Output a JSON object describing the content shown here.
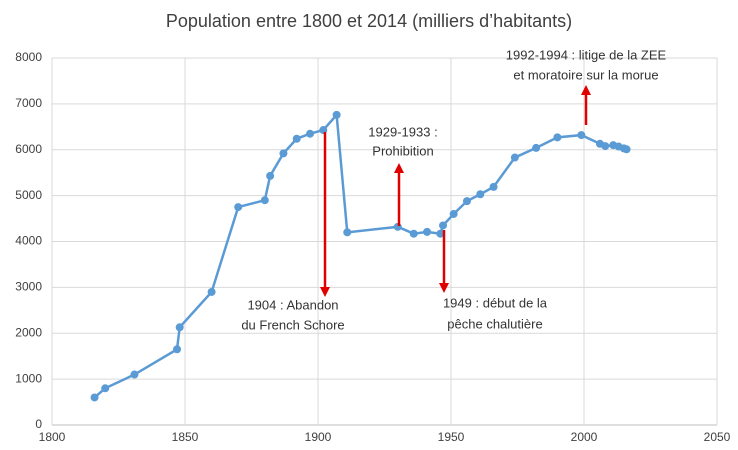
{
  "chart_data": {
    "type": "line",
    "title": "Population entre 1800 et 2014 (milliers d’habitants)",
    "x": [
      1816,
      1820,
      1831,
      1847,
      1848,
      1860,
      1870,
      1880,
      1882,
      1887,
      1892,
      1897,
      1902,
      1907,
      1911,
      1930,
      1936,
      1941,
      1946,
      1947,
      1951,
      1956,
      1961,
      1966,
      1974,
      1982,
      1990,
      1999,
      2006,
      2008,
      2011,
      2013,
      2015,
      2016
    ],
    "series": [
      {
        "name": "Population",
        "color": "#5b9bd5",
        "values": [
          600,
          800,
          1100,
          1650,
          2130,
          2900,
          4750,
          4900,
          5430,
          5920,
          6240,
          6350,
          6430,
          6760,
          4200,
          4320,
          4170,
          4210,
          4170,
          4350,
          4600,
          4880,
          5030,
          5190,
          5830,
          6040,
          6270,
          6320,
          6130,
          6080,
          6100,
          6070,
          6030,
          6010
        ]
      }
    ],
    "xlim": [
      1800,
      2050
    ],
    "xticks": [
      1800,
      1850,
      1900,
      1950,
      2000,
      2050
    ],
    "ylim": [
      0,
      8000
    ],
    "yticks": [
      0,
      1000,
      2000,
      3000,
      4000,
      5000,
      6000,
      7000,
      8000
    ],
    "grid": true,
    "annotations": [
      {
        "lines": [
          "1904 : Abandon",
          "du French Schore"
        ]
      },
      {
        "lines": [
          "1929-1933 :",
          "Prohibition"
        ]
      },
      {
        "lines": [
          "1949 : début de la",
          "pêche chalutière"
        ]
      },
      {
        "lines": [
          "1992-1994 : litige de la ZEE",
          "et moratoire sur la morue"
        ]
      }
    ]
  }
}
